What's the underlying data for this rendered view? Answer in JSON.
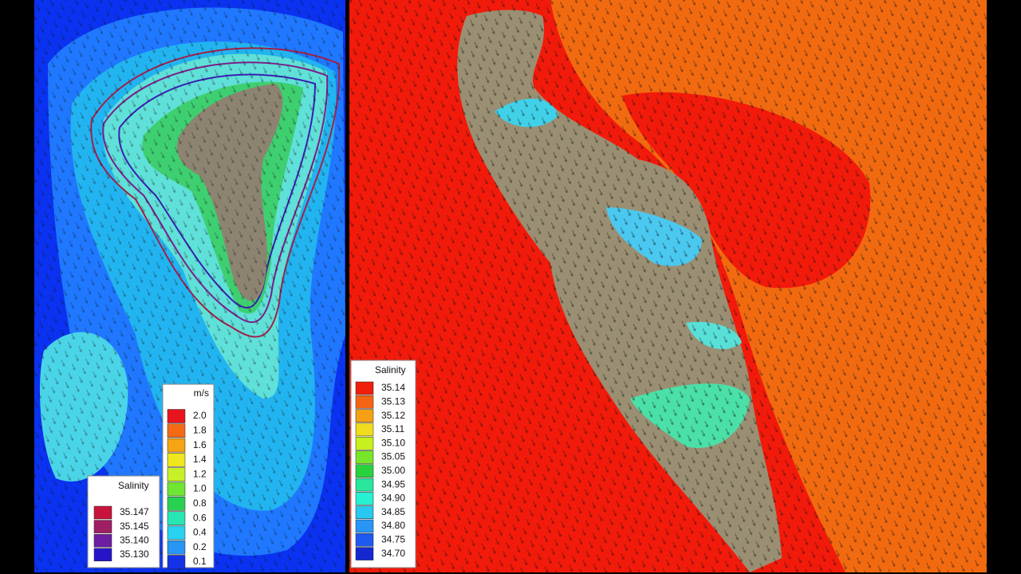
{
  "left_panel": {
    "speed_legend": {
      "title": "m/s",
      "labels": [
        "2.0",
        "1.8",
        "1.6",
        "1.4",
        "1.2",
        "1.0",
        "0.8",
        "0.6",
        "0.4",
        "0.2",
        "0.1"
      ]
    },
    "salinity_legend": {
      "title": "Salinity",
      "labels": [
        "35.147",
        "35.145",
        "35.140",
        "35.130"
      ]
    }
  },
  "right_panel": {
    "salinity_legend": {
      "title": "Salinity",
      "labels": [
        "35.14",
        "35.13",
        "35.12",
        "35.11",
        "35.10",
        "35.05",
        "35.00",
        "34.95",
        "34.90",
        "34.85",
        "34.80",
        "34.75",
        "34.70"
      ]
    }
  }
}
